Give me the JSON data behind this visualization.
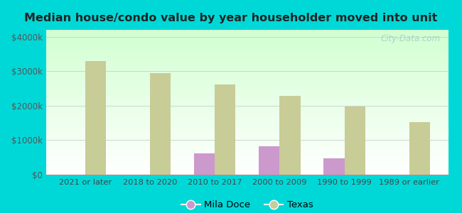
{
  "title": "Median house/condo value by year householder moved into unit",
  "categories": [
    "2021 or later",
    "2018 to 2020",
    "2010 to 2017",
    "2000 to 2009",
    "1990 to 1999",
    "1989 or earlier"
  ],
  "mila_doce": [
    0,
    0,
    62000,
    82000,
    48000,
    0
  ],
  "texas": [
    330000,
    295000,
    262000,
    228000,
    198000,
    153000
  ],
  "mila_doce_color": "#cc99cc",
  "texas_color": "#c8cc96",
  "outer_bg": "#00d8d8",
  "ylabel_values": [
    0,
    100000,
    200000,
    300000,
    400000
  ],
  "ylim": [
    0,
    420000
  ],
  "bar_width": 0.32,
  "legend_mila_doce": "Mila Doce",
  "legend_texas": "Texas",
  "watermark": "City-Data.com"
}
